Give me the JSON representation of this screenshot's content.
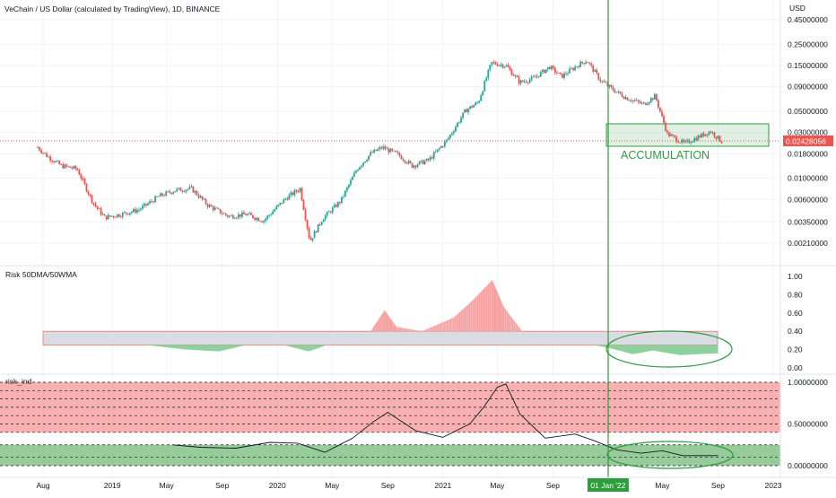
{
  "header": {
    "title": "VeChain / US Dollar (calculated by TradingView), 1D, BINANCE",
    "currency": "USD"
  },
  "colors": {
    "accent_green": "#2e9d3c",
    "last_price_red": "#ef5350",
    "up_candle": "#26a69a",
    "down_candle": "#ef5350",
    "risk_high_fill": "#f8b4b4",
    "risk_low_fill": "#8fd19e",
    "neutral_band": "#d9dde3"
  },
  "chart_data": [
    {
      "type": "line",
      "name": "price",
      "title": "VeChain / US Dollar (calculated by TradingView), 1D, BINANCE",
      "ylabel": "USD",
      "log_scale": true,
      "grid": true,
      "x_ticks": [
        "Aug",
        "2019",
        "May",
        "Sep",
        "2020",
        "May",
        "Sep",
        "2021",
        "May",
        "Sep",
        "01 Jan '22",
        "May",
        "Sep",
        "2023"
      ],
      "x_tick_dates": [
        "2018-08-01",
        "2019-01-01",
        "2019-05-01",
        "2019-09-01",
        "2020-01-01",
        "2020-05-01",
        "2020-09-01",
        "2021-01-01",
        "2021-05-01",
        "2021-09-01",
        "2022-01-01",
        "2022-05-01",
        "2022-09-01",
        "2023-01-01"
      ],
      "y_ticks": [
        "0.45000000",
        "0.25000000",
        "0.15000000",
        "0.09000000",
        "0.05000000",
        "0.03000000",
        "0.01800000",
        "0.01000000",
        "0.00600000",
        "0.00350000",
        "0.00210000"
      ],
      "y_tick_values": [
        0.45,
        0.25,
        0.15,
        0.09,
        0.05,
        0.03,
        0.018,
        0.01,
        0.006,
        0.0035,
        0.0021
      ],
      "last_price": "0.02428056",
      "last_price_value": 0.02428056,
      "x": [
        "2018-07-20",
        "2018-08-10",
        "2018-09-10",
        "2018-10-15",
        "2018-11-20",
        "2018-12-15",
        "2019-01-20",
        "2019-03-01",
        "2019-04-15",
        "2019-05-20",
        "2019-06-25",
        "2019-08-01",
        "2019-09-15",
        "2019-10-25",
        "2019-12-01",
        "2020-01-20",
        "2020-02-20",
        "2020-03-13",
        "2020-04-10",
        "2020-05-20",
        "2020-06-25",
        "2020-07-25",
        "2020-08-20",
        "2020-09-25",
        "2020-10-25",
        "2020-12-01",
        "2021-01-10",
        "2021-02-20",
        "2021-03-20",
        "2021-04-18",
        "2021-05-20",
        "2021-06-20",
        "2021-07-20",
        "2021-08-25",
        "2021-09-20",
        "2021-10-25",
        "2021-11-15",
        "2021-12-15",
        "2022-01-10",
        "2022-02-10",
        "2022-03-20",
        "2022-04-15",
        "2022-05-12",
        "2022-06-18",
        "2022-07-20",
        "2022-08-15",
        "2022-09-10"
      ],
      "y": [
        0.021,
        0.017,
        0.0135,
        0.0125,
        0.0055,
        0.0039,
        0.0042,
        0.0047,
        0.0065,
        0.0075,
        0.0078,
        0.0052,
        0.004,
        0.0042,
        0.0036,
        0.0062,
        0.0078,
        0.0022,
        0.0038,
        0.0058,
        0.0125,
        0.018,
        0.021,
        0.0175,
        0.0135,
        0.0155,
        0.025,
        0.051,
        0.062,
        0.16,
        0.15,
        0.1,
        0.11,
        0.145,
        0.115,
        0.15,
        0.17,
        0.105,
        0.085,
        0.069,
        0.059,
        0.072,
        0.029,
        0.023,
        0.027,
        0.031,
        0.024
      ],
      "annotations": [
        "ACCUMULATION"
      ]
    },
    {
      "type": "area",
      "name": "Risk 50DMA/50WMA",
      "title": "Risk 50DMA/50WMA",
      "y_ticks": [
        "1.00",
        "0.80",
        "0.60",
        "0.40",
        "0.20",
        "0.00"
      ],
      "y_tick_values": [
        1.0,
        0.8,
        0.6,
        0.4,
        0.2,
        0.0
      ],
      "ylim": [
        0,
        1.0
      ],
      "band": [
        0.25,
        0.4
      ],
      "x": [
        "2019-03-15",
        "2019-06-15",
        "2019-08-25",
        "2019-10-25",
        "2020-01-15",
        "2020-03-10",
        "2020-04-20",
        "2020-07-25",
        "2020-08-25",
        "2020-09-20",
        "2020-11-15",
        "2021-01-25",
        "2021-03-10",
        "2021-04-20",
        "2021-05-15",
        "2021-06-25",
        "2022-01-01",
        "2022-02-25",
        "2022-04-10",
        "2022-06-10",
        "2022-09-01"
      ],
      "y": [
        0.25,
        0.2,
        0.18,
        0.25,
        0.25,
        0.18,
        0.25,
        0.4,
        0.63,
        0.45,
        0.4,
        0.55,
        0.75,
        0.96,
        0.67,
        0.4,
        0.22,
        0.15,
        0.19,
        0.14,
        0.16
      ]
    },
    {
      "type": "line",
      "name": "risk_ind",
      "title": "risk_ind",
      "y_ticks": [
        "1.00000000",
        "0.50000000",
        "0.00000000"
      ],
      "y_tick_values": [
        1.0,
        0.5,
        0.0
      ],
      "ylim": [
        -0.08,
        1.1
      ],
      "high_zone": [
        0.4,
        1.0
      ],
      "low_zone": [
        0.0,
        0.25
      ],
      "x": [
        "2019-05-15",
        "2019-07-15",
        "2019-10-01",
        "2019-12-15",
        "2020-02-15",
        "2020-04-15",
        "2020-06-15",
        "2020-08-01",
        "2020-09-01",
        "2020-11-01",
        "2021-01-01",
        "2021-03-01",
        "2021-04-01",
        "2021-05-01",
        "2021-05-20",
        "2021-06-20",
        "2021-08-15",
        "2021-10-20",
        "2021-12-01",
        "2022-01-20",
        "2022-03-15",
        "2022-05-01",
        "2022-06-15",
        "2022-09-01"
      ],
      "y": [
        0.25,
        0.22,
        0.21,
        0.28,
        0.27,
        0.16,
        0.33,
        0.53,
        0.64,
        0.42,
        0.34,
        0.5,
        0.7,
        0.94,
        0.98,
        0.62,
        0.33,
        0.38,
        0.3,
        0.19,
        0.15,
        0.18,
        0.12,
        0.12
      ]
    }
  ]
}
